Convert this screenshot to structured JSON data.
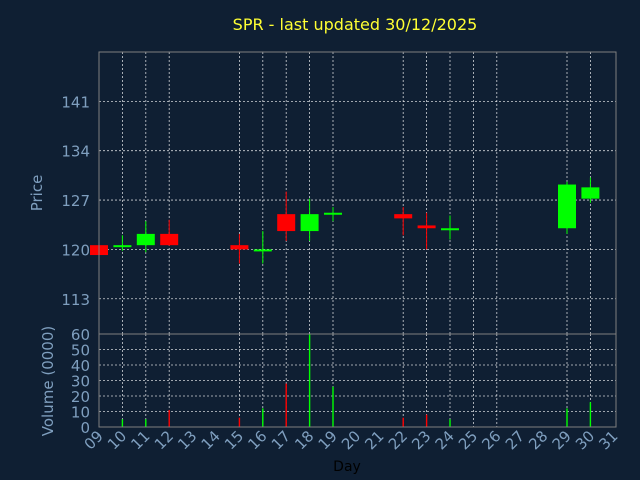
{
  "header": {
    "title": "SPR - last updated 30/12/2025"
  },
  "colors": {
    "background": "#0f1f33",
    "up": "#00ff00",
    "down": "#ff0000",
    "title": "#ffff33",
    "axis_text": "#7f9fbf",
    "grid": "#ffffff"
  },
  "chart_data": [
    {
      "type": "candlestick",
      "ylabel": "Price",
      "ylim": [
        108,
        148
      ],
      "yticks": [
        113,
        120,
        127,
        134,
        141
      ],
      "grid": true,
      "candles": [
        {
          "day": "09",
          "open": 120.6,
          "close": 119.2,
          "high": 120.8,
          "low": 119.0
        },
        {
          "day": "10",
          "open": 120.4,
          "close": 120.6,
          "high": 122.0,
          "low": 119.8
        },
        {
          "day": "11",
          "open": 120.6,
          "close": 122.2,
          "high": 124.0,
          "low": 119.6
        },
        {
          "day": "12",
          "open": 122.2,
          "close": 120.6,
          "high": 124.2,
          "low": 120.5
        },
        {
          "day": "15",
          "open": 120.6,
          "close": 120.0,
          "high": 122.2,
          "low": 118.0
        },
        {
          "day": "16",
          "open": 119.8,
          "close": 120.0,
          "high": 122.6,
          "low": 118.0
        },
        {
          "day": "17",
          "open": 125.0,
          "close": 122.6,
          "high": 128.2,
          "low": 121.2
        },
        {
          "day": "18",
          "open": 122.6,
          "close": 125.0,
          "high": 127.2,
          "low": 121.2
        },
        {
          "day": "19",
          "open": 125.0,
          "close": 125.2,
          "high": 126.0,
          "low": 124.0
        },
        {
          "day": "22",
          "open": 125.0,
          "close": 124.4,
          "high": 126.0,
          "low": 122.0
        },
        {
          "day": "23",
          "open": 123.4,
          "close": 123.0,
          "high": 125.2,
          "low": 120.0
        },
        {
          "day": "24",
          "open": 122.8,
          "close": 123.0,
          "high": 124.8,
          "low": 121.4
        },
        {
          "day": "29",
          "open": 123.0,
          "close": 129.2,
          "high": 129.6,
          "low": 122.2
        },
        {
          "day": "30",
          "open": 127.2,
          "close": 128.8,
          "high": 130.2,
          "low": 126.6
        }
      ]
    },
    {
      "type": "bar",
      "ylabel": "Volume (0000)",
      "xlabel": "Day",
      "ylim": [
        0,
        60
      ],
      "yticks": [
        0,
        10,
        20,
        30,
        40,
        50,
        60
      ],
      "grid": true,
      "categories": [
        "09",
        "10",
        "11",
        "12",
        "13",
        "14",
        "15",
        "16",
        "17",
        "18",
        "19",
        "20",
        "21",
        "22",
        "23",
        "24",
        "25",
        "26",
        "27",
        "28",
        "29",
        "30",
        "31"
      ],
      "values": [
        0,
        5,
        5,
        11,
        0,
        0,
        6,
        12,
        28,
        60,
        26,
        0,
        0,
        6,
        8,
        5,
        0,
        0,
        0,
        0,
        12,
        16,
        0
      ]
    }
  ]
}
